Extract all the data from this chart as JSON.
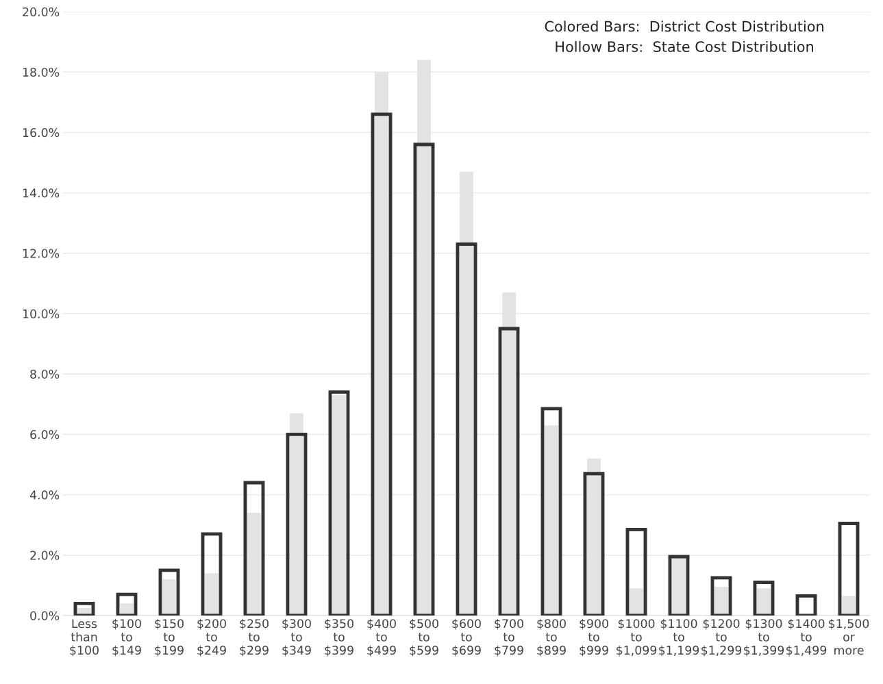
{
  "chart_data": {
    "type": "bar",
    "categories": [
      "Less\nthan\n$100",
      "$100\nto\n$149",
      "$150\nto\n$199",
      "$200\nto\n$249",
      "$250\nto\n$299",
      "$300\nto\n$349",
      "$350\nto\n$399",
      "$400\nto\n$499",
      "$500\nto\n$599",
      "$600\nto\n$699",
      "$700\nto\n$799",
      "$800\nto\n$899",
      "$900\nto\n$999",
      "$1000\nto\n$1,099",
      "$1100\nto\n$1,199",
      "$1200\nto\n$1,299",
      "$1300\nto\n$1,399",
      "$1400\nto\n$1,499",
      "$1,500\nor\nmore"
    ],
    "series": [
      {
        "color": "#e3e3e3",
        "values": [
          0.25,
          0.4,
          1.2,
          1.4,
          3.4,
          6.7,
          7.3,
          18.0,
          18.4,
          14.7,
          10.7,
          6.3,
          5.2,
          0.9,
          1.9,
          0.95,
          0.9,
          0.0,
          0.65
        ]
      },
      {
        "color": "#333333",
        "values": [
          0.4,
          0.7,
          1.5,
          2.7,
          4.4,
          6.0,
          7.4,
          16.6,
          15.6,
          12.3,
          9.5,
          6.85,
          4.7,
          2.85,
          1.95,
          1.25,
          1.1,
          0.65,
          3.05
        ]
      }
    ],
    "ylim": [
      0,
      20
    ],
    "yticks": [
      {
        "value": 0,
        "label": "0.0%"
      },
      {
        "value": 2,
        "label": "2.0%"
      },
      {
        "value": 4,
        "label": "4.0%"
      },
      {
        "value": 6,
        "label": "6.0%"
      },
      {
        "value": 8,
        "label": "8.0%"
      },
      {
        "value": 10,
        "label": "10.0%"
      },
      {
        "value": 12,
        "label": "12.0%"
      },
      {
        "value": 14,
        "label": "14.0%"
      },
      {
        "value": 16,
        "label": "16.0%"
      },
      {
        "value": 18,
        "label": "18.0%"
      },
      {
        "value": 20,
        "label": "20.0%"
      }
    ],
    "grid": "y",
    "annotations": [
      "Colored Bars:  District Cost Distribution\nHollow Bars:  State Cost Distribution"
    ]
  }
}
